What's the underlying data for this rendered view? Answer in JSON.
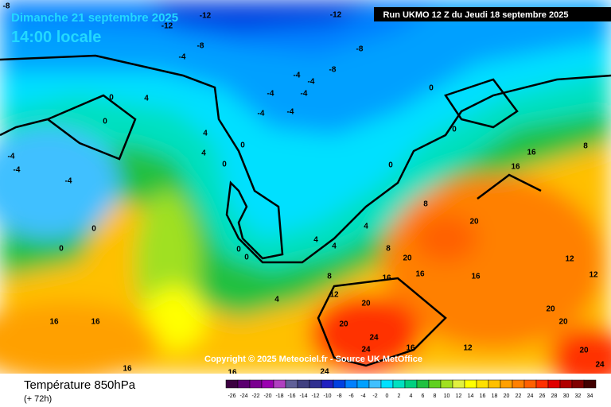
{
  "header": {
    "date": "Dimanche 21 septembre 2025",
    "time": "14:00 locale",
    "run": "Run UKMO 12 Z du Jeudi 18 septembre 2025",
    "copyright": "Copyright © 2025 Meteociel.fr - Source UK MetOffice"
  },
  "footer": {
    "title": "Température 850hPa",
    "lead": "(+ 72h)"
  },
  "legend": {
    "labels": [
      -26,
      -24,
      -22,
      -20,
      -18,
      -16,
      -14,
      -12,
      -10,
      -8,
      -6,
      -4,
      -2,
      0,
      2,
      4,
      6,
      8,
      10,
      12,
      14,
      16,
      18,
      20,
      22,
      24,
      26,
      28,
      30,
      32,
      34
    ],
    "colors": [
      "#3b0040",
      "#5b0070",
      "#7a0090",
      "#9a00b0",
      "#b040c0",
      "#606098",
      "#404080",
      "#303090",
      "#2020c0",
      "#0040e0",
      "#0080ff",
      "#00a0ff",
      "#40c0ff",
      "#00e0ff",
      "#00e0c0",
      "#00d080",
      "#20c040",
      "#60d020",
      "#a0e020",
      "#e0f040",
      "#ffff00",
      "#ffe000",
      "#ffc000",
      "#ffa000",
      "#ff8000",
      "#ff6000",
      "#ff3000",
      "#e00000",
      "#b00000",
      "#800000",
      "#400000"
    ]
  },
  "isotherms": [
    -8,
    -12,
    -12,
    -12,
    -8,
    -4,
    -8,
    -8,
    -4,
    -4,
    -4,
    -4,
    -4,
    -4,
    -4,
    -4,
    -4,
    0,
    0,
    0,
    0,
    0,
    0,
    0,
    0,
    0,
    0,
    0,
    4,
    4,
    4,
    4,
    4,
    4,
    4,
    8,
    8,
    8,
    8,
    12,
    12,
    12,
    16,
    16,
    16,
    16,
    16,
    16,
    16,
    16,
    16,
    16,
    20,
    20,
    20,
    20,
    20,
    20,
    24,
    24,
    24,
    24,
    20,
    12
  ]
}
